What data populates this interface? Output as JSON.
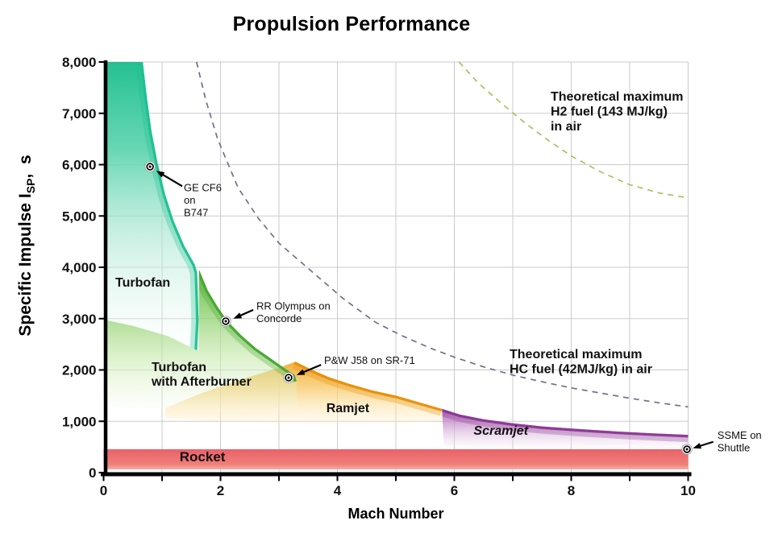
{
  "chart_data": {
    "type": "area",
    "title": "Propulsion Performance",
    "xlabel": "Mach Number",
    "ylabel": {
      "prefix": "Specific Impulse I",
      "sub": "SP",
      "suffix": ",  s"
    },
    "xlim": [
      0,
      10
    ],
    "ylim": [
      0,
      8000
    ],
    "grid": {
      "color": "#cbcbcb",
      "x_step": 1,
      "y_step": 1000
    },
    "x_ticks": [
      {
        "v": 0,
        "label": "0"
      },
      {
        "v": 1
      },
      {
        "v": 2,
        "label": "2"
      },
      {
        "v": 3
      },
      {
        "v": 4,
        "label": "4"
      },
      {
        "v": 5
      },
      {
        "v": 6,
        "label": "6"
      },
      {
        "v": 7
      },
      {
        "v": 8,
        "label": "8"
      },
      {
        "v": 9
      },
      {
        "v": 10,
        "label": "10"
      }
    ],
    "y_ticks": [
      {
        "v": 0,
        "label": "0"
      },
      {
        "v": 1000,
        "label": "1,000"
      },
      {
        "v": 2000,
        "label": "2,000"
      },
      {
        "v": 3000,
        "label": "3,000"
      },
      {
        "v": 4000,
        "label": "4,000"
      },
      {
        "v": 5000,
        "label": "5,000"
      },
      {
        "v": 6000,
        "label": "6,000"
      },
      {
        "v": 7000,
        "label": "7,000"
      },
      {
        "v": 8000,
        "label": "8,000"
      }
    ],
    "regions": [
      {
        "id": "ramjet",
        "label_lines": [
          "Ramjet"
        ],
        "label_pos": [
          3.81,
          1180
        ],
        "label_size": 16,
        "italic": false,
        "edge_color": "#e78f08",
        "fill_stops": [
          [
            0,
            "#f2a82e",
            0.92
          ],
          [
            0.4,
            "#f7c765",
            0.78
          ],
          [
            0.7,
            "#fbe09f",
            0.55
          ],
          [
            1,
            "#fdf2d2",
            0.28
          ]
        ],
        "points": [
          [
            1.05,
            1260
          ],
          [
            1.7,
            1560
          ],
          [
            2.4,
            1830
          ],
          [
            3.0,
            2040
          ],
          [
            3.28,
            2160
          ],
          [
            3.55,
            2010
          ],
          [
            3.85,
            1860
          ],
          [
            4.2,
            1730
          ],
          [
            4.6,
            1600
          ],
          [
            5.0,
            1500
          ],
          [
            5.4,
            1370
          ],
          [
            5.79,
            1240
          ],
          [
            5.79,
            1010
          ],
          [
            5.0,
            955
          ],
          [
            4.0,
            940
          ],
          [
            3.0,
            955
          ],
          [
            2.0,
            1000
          ],
          [
            1.05,
            1060
          ]
        ],
        "edge": [
          [
            3.28,
            2160
          ],
          [
            3.55,
            2010
          ],
          [
            3.85,
            1860
          ],
          [
            4.2,
            1730
          ],
          [
            4.6,
            1600
          ],
          [
            5.0,
            1500
          ],
          [
            5.4,
            1370
          ],
          [
            5.79,
            1240
          ]
        ]
      },
      {
        "id": "turbofan-afterburner",
        "label_lines": [
          "Turbofan",
          "with Afterburner"
        ],
        "label_pos": [
          0.82,
          1980
        ],
        "label_size": 16,
        "italic": false,
        "edge_color": "#46a72f",
        "fill_stops": [
          [
            0,
            "#5cb944",
            0.95
          ],
          [
            0.3,
            "#8ed06e",
            0.8
          ],
          [
            0.6,
            "#c3e8a8",
            0.6
          ],
          [
            0.85,
            "#e4f5d3",
            0.35
          ],
          [
            1,
            "#f7fcf0",
            0.12
          ]
        ],
        "points": [
          [
            0,
            2980
          ],
          [
            0.5,
            2860
          ],
          [
            1.1,
            2660
          ],
          [
            1.6,
            2380
          ],
          [
            1.625,
            2390
          ],
          [
            1.635,
            3950
          ],
          [
            1.78,
            3550
          ],
          [
            1.95,
            3230
          ],
          [
            2.12,
            2950
          ],
          [
            2.35,
            2680
          ],
          [
            2.6,
            2430
          ],
          [
            2.85,
            2230
          ],
          [
            3.1,
            2030
          ],
          [
            3.27,
            1900
          ],
          [
            3.3,
            1780
          ],
          [
            3.3,
            1150
          ],
          [
            2.6,
            1170
          ],
          [
            1.8,
            1200
          ],
          [
            1.0,
            1240
          ],
          [
            0,
            1300
          ]
        ],
        "edge": [
          [
            1.635,
            3950
          ],
          [
            1.78,
            3550
          ],
          [
            1.95,
            3230
          ],
          [
            2.12,
            2950
          ],
          [
            2.35,
            2680
          ],
          [
            2.6,
            2430
          ],
          [
            2.85,
            2230
          ],
          [
            3.1,
            2030
          ],
          [
            3.27,
            1900
          ],
          [
            3.3,
            1780
          ]
        ]
      },
      {
        "id": "turbofan",
        "label_lines": [
          "Turbofan"
        ],
        "label_pos": [
          0.2,
          3620
        ],
        "label_size": 16,
        "italic": false,
        "edge_color": "#1fc091",
        "fill_stops": [
          [
            0,
            "#24c091",
            1
          ],
          [
            0.3,
            "#55d2ab",
            0.9
          ],
          [
            0.6,
            "#a5e6d0",
            0.6
          ],
          [
            0.85,
            "#d9f4e9",
            0.35
          ],
          [
            1,
            "#f0fbf7",
            0.15
          ]
        ],
        "points": [
          [
            0,
            8000
          ],
          [
            0.67,
            8000
          ],
          [
            0.74,
            7300
          ],
          [
            0.82,
            6650
          ],
          [
            0.92,
            6050
          ],
          [
            1.05,
            5430
          ],
          [
            1.2,
            4900
          ],
          [
            1.38,
            4420
          ],
          [
            1.56,
            4050
          ],
          [
            1.6,
            3900
          ],
          [
            1.615,
            3400
          ],
          [
            1.625,
            2950
          ],
          [
            1.6,
            2380
          ],
          [
            1.1,
            2660
          ],
          [
            0.5,
            2860
          ],
          [
            0,
            2980
          ]
        ],
        "edge": [
          [
            0.67,
            8000
          ],
          [
            0.74,
            7300
          ],
          [
            0.82,
            6650
          ],
          [
            0.92,
            6050
          ],
          [
            1.05,
            5430
          ],
          [
            1.2,
            4900
          ],
          [
            1.38,
            4420
          ],
          [
            1.56,
            4050
          ],
          [
            1.6,
            3900
          ],
          [
            1.615,
            3400
          ],
          [
            1.625,
            2950
          ],
          [
            1.6,
            2380
          ]
        ]
      },
      {
        "id": "scramjet",
        "label_lines": [
          "Scramjet"
        ],
        "label_pos": [
          6.33,
          740
        ],
        "label_size": 16,
        "italic": true,
        "edge_color": "#8a3793",
        "fill_stops": [
          [
            0,
            "#a156a8",
            0.9
          ],
          [
            0.35,
            "#c48cc8",
            0.7
          ],
          [
            0.7,
            "#e2c6e4",
            0.45
          ],
          [
            1,
            "#f5ebf6",
            0.1
          ]
        ],
        "points": [
          [
            5.79,
            1240
          ],
          [
            6.1,
            1130
          ],
          [
            6.5,
            1040
          ],
          [
            7.0,
            960
          ],
          [
            7.5,
            900
          ],
          [
            8.1,
            850
          ],
          [
            8.8,
            800
          ],
          [
            9.4,
            765
          ],
          [
            10,
            735
          ],
          [
            10,
            430
          ],
          [
            9.2,
            460
          ],
          [
            8.3,
            480
          ],
          [
            7.4,
            497
          ],
          [
            6.6,
            508
          ],
          [
            6.1,
            515
          ],
          [
            5.82,
            525
          ]
        ],
        "edge": [
          [
            5.79,
            1240
          ],
          [
            6.1,
            1130
          ],
          [
            6.5,
            1040
          ],
          [
            7.0,
            960
          ],
          [
            7.5,
            900
          ],
          [
            8.1,
            850
          ],
          [
            8.8,
            800
          ],
          [
            9.4,
            765
          ],
          [
            10,
            735
          ]
        ]
      },
      {
        "id": "rocket",
        "label_lines": [
          "Rocket"
        ],
        "label_pos": [
          1.3,
          220
        ],
        "label_size": 17,
        "italic": false,
        "edge_color": null,
        "fill_stops": [
          [
            0,
            "#e9616a",
            1
          ],
          [
            0.75,
            "#ef7f78",
            1
          ],
          [
            1,
            "#f4a49b",
            0.9
          ]
        ],
        "points": [
          [
            0,
            455
          ],
          [
            10,
            455
          ],
          [
            10,
            63
          ],
          [
            0,
            63
          ]
        ],
        "edge": null
      }
    ],
    "curves": [
      {
        "id": "h2-max",
        "color": "#a8c164",
        "label_lines": [
          "Theoretical maximum",
          "H2 fuel (143 MJ/kg)",
          "in air"
        ],
        "label_pos": [
          7.648,
          7250
        ],
        "points": [
          [
            6.08,
            8000
          ],
          [
            6.4,
            7600
          ],
          [
            6.8,
            7200
          ],
          [
            7.2,
            6820
          ],
          [
            7.6,
            6480
          ],
          [
            8.0,
            6170
          ],
          [
            8.5,
            5860
          ],
          [
            9.0,
            5610
          ],
          [
            9.5,
            5450
          ],
          [
            10,
            5350
          ]
        ]
      },
      {
        "id": "hc-max",
        "color": "#71708d",
        "label_lines": [
          "Theoretical maximum",
          "HC fuel (42MJ/kg) in air"
        ],
        "label_pos": [
          6.945,
          2230
        ],
        "points": [
          [
            1.59,
            8000
          ],
          [
            1.75,
            7250
          ],
          [
            1.95,
            6500
          ],
          [
            2.3,
            5550
          ],
          [
            2.65,
            4950
          ],
          [
            3.0,
            4470
          ],
          [
            3.6,
            3880
          ],
          [
            4.1,
            3390
          ],
          [
            4.65,
            2930
          ],
          [
            5.1,
            2670
          ],
          [
            5.6,
            2420
          ],
          [
            6.0,
            2250
          ],
          [
            6.5,
            2060
          ],
          [
            7.0,
            1900
          ],
          [
            7.5,
            1770
          ],
          [
            8.0,
            1650
          ],
          [
            8.5,
            1550
          ],
          [
            9.0,
            1450
          ],
          [
            9.5,
            1360
          ],
          [
            10,
            1280
          ]
        ]
      }
    ],
    "engine_points": [
      {
        "id": "ge-cf6",
        "label_lines": [
          "GE CF6",
          "on",
          "B747"
        ],
        "mach": 0.795,
        "isp": 5960,
        "label_pos": [
          1.372,
          5480
        ],
        "arrow_from": [
          1.345,
          5580
        ],
        "arrow_to": [
          0.9,
          5880
        ]
      },
      {
        "id": "rr-olympus",
        "label_lines": [
          "RR Olympus on",
          "Concorde"
        ],
        "mach": 2.09,
        "isp": 2950,
        "label_pos": [
          2.614,
          3180
        ],
        "arrow_from": [
          2.56,
          3170
        ],
        "arrow_to": [
          2.22,
          3000
        ]
      },
      {
        "id": "pw-j58",
        "label_lines": [
          "P&W J58 on SR-71"
        ],
        "mach": 3.165,
        "isp": 1850,
        "label_pos": [
          3.772,
          2115
        ],
        "arrow_from": [
          3.72,
          2100
        ],
        "arrow_to": [
          3.3,
          1900
        ]
      },
      {
        "id": "ssme",
        "label_lines": [
          "SSME on",
          "Shuttle"
        ],
        "mach": 9.98,
        "isp": 455,
        "label_pos": [
          10.5,
          655
        ],
        "arrow_from": [
          10.43,
          600
        ],
        "arrow_to": [
          10.08,
          475
        ]
      }
    ]
  }
}
